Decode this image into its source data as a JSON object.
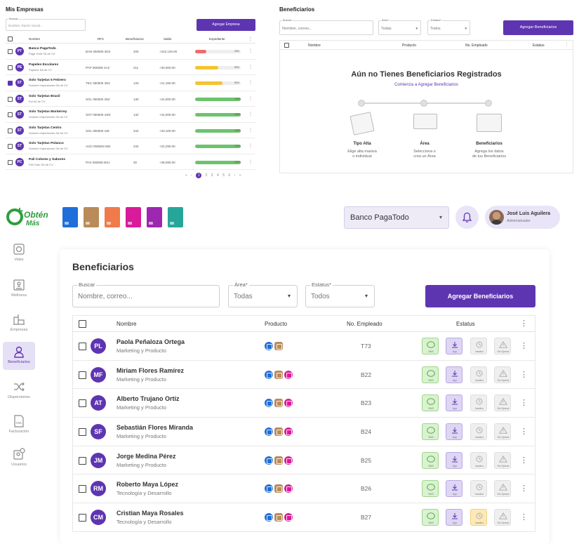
{
  "empresas_panel": {
    "title": "Mis Empresas",
    "search_label": "Buscar",
    "search_placeholder": "Nombre, Razón Social...",
    "add_button": "Agregar Empresa",
    "columns": [
      "Nombre",
      "RFC",
      "Beneficiarios",
      "Saldo",
      "Expediente"
    ],
    "rows": [
      {
        "initials": "PT",
        "name": "Banco PagaTodo",
        "sub": "Paga Todo SA de CV",
        "rfc": "BAN 050505 3N3",
        "ben": "200",
        "saldo": "+222,130.00",
        "pct": 0.25,
        "pct_label": "25%",
        "color": "#ef6c6c",
        "checked": false
      },
      {
        "initials": "PE",
        "name": "Papeles Escolares",
        "sub": "Papeles SA de CV",
        "rfc": "PAP 050505 4A2",
        "ben": "211",
        "saldo": "+30,000.00",
        "pct": 0.5,
        "pct_label": "50%",
        "color": "#f4c430",
        "checked": false
      },
      {
        "initials": "ST",
        "name": "Solo Tarjetas 5 Febrero",
        "sub": "Solumix Impresiones SA de CV",
        "rfc": "TEC 050505 4N2",
        "ben": "133",
        "saldo": "+21,150.00",
        "pct": 0.6,
        "pct_label": "60%",
        "color": "#f4c430",
        "checked": true
      },
      {
        "initials": "ST",
        "name": "Solo Tarjetas Brasil",
        "sub": "Ext 64 de CV",
        "rfc": "SOL 050505 4N2",
        "ben": "130",
        "saldo": "+24,000.00",
        "pct": 1.0,
        "pct_label": "100%",
        "color": "#6cc36c",
        "checked": false
      },
      {
        "initials": "ST",
        "name": "Solo Tarjetas Monterrey",
        "sub": "Solumix Impresiones SA de CV",
        "rfc": "SOT 050505 4SN",
        "ben": "132",
        "saldo": "+44,000.00",
        "pct": 1.0,
        "pct_label": "100%",
        "color": "#6cc36c",
        "checked": false
      },
      {
        "initials": "ST",
        "name": "Solo Tarjetas Centro",
        "sub": "Solumix Impresiones SA de CV",
        "rfc": "SOL 050505 4J8",
        "ben": "344",
        "saldo": "+20,100.00",
        "pct": 1.0,
        "pct_label": "100%",
        "color": "#6cc36c",
        "checked": false
      },
      {
        "initials": "ST",
        "name": "Solo Tarjetas Polanco",
        "sub": "Solumix Impresiones SA de CV",
        "rfc": "AUO 050505 N82",
        "ben": "234",
        "saldo": "+22,290.00",
        "pct": 1.0,
        "pct_label": "100%",
        "color": "#6cc36c",
        "checked": false
      },
      {
        "initials": "PC",
        "name": "Pali Colores y Sabores",
        "sub": "Pali Todo SA de CV",
        "rfc": "PAS 050505 BSJ",
        "ben": "30",
        "saldo": "+38,090.00",
        "pct": 1.0,
        "pct_label": "100%",
        "color": "#6cc36c",
        "checked": false
      }
    ],
    "pager": {
      "prev": "«",
      "prev2": "‹",
      "pages": [
        "1",
        "2",
        "3",
        "4",
        "5",
        "6"
      ],
      "next": "›",
      "next2": "»"
    }
  },
  "benef_mini": {
    "title": "Beneficiarios",
    "search_label": "Buscar",
    "search_placeholder": "Nombre, correo...",
    "area_label": "Área*",
    "area_value": "Todas",
    "estatus_label": "Estatus*",
    "estatus_value": "Todos",
    "add_button": "Agregar Beneficiarios",
    "columns": [
      "Nombre",
      "Producto",
      "No. Empleado",
      "Estatus"
    ],
    "empty_title": "Aún no Tienes Beneficiarios Registrados",
    "empty_link": "Comienza a Agregar Beneficiarios",
    "steps": [
      {
        "title": "Tipo Alta",
        "desc1": "Elige alta masiva",
        "desc2": "o individual"
      },
      {
        "title": "Área",
        "desc1": "Selecciona o",
        "desc2": "crea un Área"
      },
      {
        "title": "Beneficiarios",
        "desc1": "Agrega los datos",
        "desc2": "de tus Beneficiarios"
      }
    ]
  },
  "topbar": {
    "logo_line1": "Obtén",
    "logo_line2": "Más",
    "bank_select": "Banco PagaTodo",
    "user_name": "José Luis Aguilera",
    "user_role": "Administrador",
    "card_colors": [
      "#1e6fd9",
      "#b98b5a",
      "#f07a4a",
      "#d81b9a",
      "#9c27b0",
      "#26a69a"
    ]
  },
  "sidebar": {
    "items": [
      {
        "label": "Vales",
        "icon": "vales-icon"
      },
      {
        "label": "Wellness",
        "icon": "wellness-icon"
      },
      {
        "label": "Empresas",
        "icon": "empresas-icon"
      },
      {
        "label": "Beneficiarios",
        "icon": "beneficiarios-icon",
        "active": true
      },
      {
        "label": "Dispersiones",
        "icon": "dispersiones-icon"
      },
      {
        "label": "Facturación",
        "icon": "facturacion-icon"
      },
      {
        "label": "Usuarios",
        "icon": "usuarios-icon"
      }
    ]
  },
  "main": {
    "title": "Beneficiarios",
    "search_label": "Buscar",
    "search_placeholder": "Nombre, correo...",
    "area_label": "Área*",
    "area_value": "Todas",
    "estatus_label": "Estatus*",
    "estatus_value": "Todos",
    "add_button": "Agregar Beneficiarios",
    "columns": {
      "nombre": "Nombre",
      "producto": "Producto",
      "empleado": "No. Empleado",
      "estatus": "Estatus"
    },
    "status_caps": {
      "sms": "SMS",
      "app": "App",
      "inactivo": "Inactivo",
      "sin_operar": "Sin Operar"
    },
    "rows": [
      {
        "initials": "PL",
        "name": "Paola Peñaloza Ortega",
        "dept": "Marketing y Producto",
        "emp": "T73",
        "products": [
          "#1e6fd9",
          "#b98b5a"
        ],
        "inactivo_warn": false
      },
      {
        "initials": "MF",
        "name": "Miriam Flores Ramírez",
        "dept": "Marketing y Producto",
        "emp": "B22",
        "products": [
          "#1e6fd9",
          "#b98b5a",
          "#d81b9a"
        ],
        "inactivo_warn": false
      },
      {
        "initials": "AT",
        "name": "Alberto Trujano Ortíz",
        "dept": "Marketing y Producto",
        "emp": "B23",
        "products": [
          "#1e6fd9",
          "#b98b5a",
          "#d81b9a"
        ],
        "inactivo_warn": false
      },
      {
        "initials": "SF",
        "name": "Sebastián Flores Miranda",
        "dept": "Marketing y Producto",
        "emp": "B24",
        "products": [
          "#1e6fd9",
          "#b98b5a",
          "#d81b9a"
        ],
        "inactivo_warn": false
      },
      {
        "initials": "JM",
        "name": "Jorge Medina Pérez",
        "dept": "Marketing y Producto",
        "emp": "B25",
        "products": [
          "#1e6fd9",
          "#b98b5a",
          "#d81b9a"
        ],
        "inactivo_warn": false
      },
      {
        "initials": "RM",
        "name": "Roberto Maya López",
        "dept": "Tecnología y Desarrollo",
        "emp": "B26",
        "products": [
          "#1e6fd9",
          "#b98b5a",
          "#d81b9a"
        ],
        "inactivo_warn": false
      },
      {
        "initials": "CM",
        "name": "Cristian Maya Rosales",
        "dept": "Tecnología y Desarrollo",
        "emp": "B27",
        "products": [
          "#1e6fd9",
          "#b98b5a",
          "#d81b9a"
        ],
        "inactivo_warn": true
      }
    ]
  }
}
